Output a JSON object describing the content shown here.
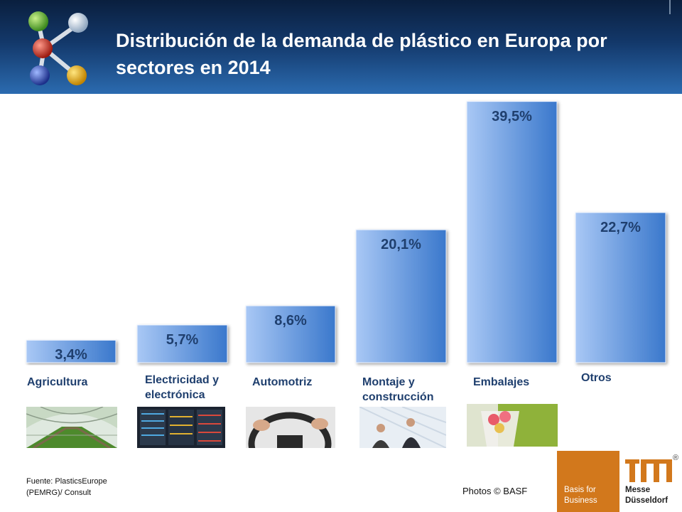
{
  "title": "Distribución de la demanda de plástico en Europa por sectores en 2014",
  "chart_data": {
    "type": "bar",
    "title": "Distribución de la demanda de plástico en Europa por sectores en 2014",
    "categories": [
      "Agricultura",
      "Electricidad y electrónica",
      "Automotriz",
      "Montaje y construcción",
      "Embalajes",
      "Otros"
    ],
    "values": [
      3.4,
      5.7,
      8.6,
      20.1,
      39.5,
      22.7
    ],
    "value_labels": [
      "3,4%",
      "5,7%",
      "8,6%",
      "20,1%",
      "39,5%",
      "22,7%"
    ],
    "unit": "%",
    "ylim": [
      0,
      40
    ],
    "grid": false,
    "legend": "none",
    "bar_color_light": "#a9c8f5",
    "bar_color_dark": "#3a78cc"
  },
  "category_lines": [
    [
      "Agricultura"
    ],
    [
      "Electricidad y",
      "electrónica"
    ],
    [
      "Automotriz"
    ],
    [
      "Montaje y",
      "construcción"
    ],
    [
      "Embalajes"
    ],
    [
      "Otros"
    ]
  ],
  "footer": {
    "source_line1": "Fuente: PlasticsEurope",
    "source_line2": "(PEMRG)/ Consult",
    "credit": "Photos © BASF"
  },
  "branding": {
    "basis_line1": "Basis for",
    "basis_line2": "Business",
    "messe_line1": "Messe",
    "messe_line2": "Düsseldorf",
    "registered": "®",
    "orange": "#d2781c"
  }
}
